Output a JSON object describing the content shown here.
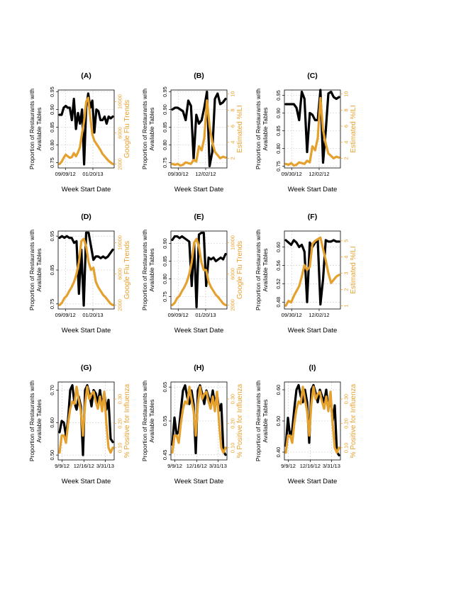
{
  "colors": {
    "black_series": "#000000",
    "orange_series": "#E5A12E",
    "grid": "#c8c8c8",
    "axis": "#000000"
  },
  "chart_data": [
    {
      "panel": "(A)",
      "type": "line",
      "xlabel": "Week Start Date",
      "ylabel_left": "Proportion of Restaurants with Available Tables",
      "ylabel_right": "Google Flu Trends",
      "x_ticks": [
        "09/09/12",
        "01/20/13"
      ],
      "ylim_left": [
        0.735,
        0.955
      ],
      "ylim_right": [
        1500,
        11500
      ],
      "y_ticks_left": [
        0.75,
        0.8,
        0.85,
        0.9,
        0.95
      ],
      "y_ticks_right": [
        2000,
        6000,
        10000
      ],
      "series_left": [
        0.885,
        0.885,
        0.905,
        0.91,
        0.905,
        0.905,
        0.87,
        0.93,
        0.845,
        0.89,
        0.86,
        0.9,
        0.745,
        0.905,
        0.945,
        0.905,
        0.925,
        0.835,
        0.9,
        0.895,
        0.87,
        0.87,
        0.88,
        0.86,
        0.88,
        0.875,
        0.88
      ],
      "series_right": [
        2000,
        2300,
        2800,
        3200,
        3000,
        2800,
        2900,
        3400,
        3000,
        3500,
        4200,
        6000,
        7500,
        10000,
        10500,
        8000,
        5800,
        5000,
        4600,
        4200,
        3800,
        3300,
        3000,
        2700,
        2400,
        2200,
        2000
      ]
    },
    {
      "panel": "(B)",
      "type": "line",
      "xlabel": "Week Start Date",
      "ylabel_left": "Proportion of Restaurants with Available Tables",
      "ylabel_right": "Estimated %ILI",
      "x_ticks": [
        "09/30/12",
        "12/02/12"
      ],
      "ylim_left": [
        0.735,
        0.955
      ],
      "ylim_right": [
        0.8,
        10.5
      ],
      "y_ticks_left": [
        0.75,
        0.8,
        0.85,
        0.9,
        0.95
      ],
      "y_ticks_right": [
        2,
        4,
        6,
        8,
        10
      ],
      "series_left": [
        0.9,
        0.905,
        0.905,
        0.9,
        0.895,
        0.87,
        0.925,
        0.91,
        0.76,
        0.885,
        0.86,
        0.87,
        0.905,
        0.95,
        0.74,
        0.78,
        0.93,
        0.945,
        0.915,
        0.92,
        0.93
      ],
      "series_right": [
        1.3,
        1.2,
        1.3,
        1.1,
        1.2,
        1.5,
        1.4,
        1.3,
        1.8,
        1.6,
        3.5,
        3.0,
        4.5,
        9.2,
        6.0,
        4.0,
        2.8,
        2.4,
        2.0,
        2.2,
        2.1
      ]
    },
    {
      "panel": "(C)",
      "type": "line",
      "xlabel": "Week Start Date",
      "ylabel_left": "Proportion of Restaurants with Available Tables",
      "ylabel_right": "Estimated %ILI",
      "x_ticks": [
        "09/30/12",
        "12/02/12"
      ],
      "ylim_left": [
        0.745,
        0.965
      ],
      "ylim_right": [
        0.8,
        10.5
      ],
      "y_ticks_left": [
        0.75,
        0.8,
        0.85,
        0.9,
        0.95
      ],
      "y_ticks_right": [
        2,
        4,
        6,
        8,
        10
      ],
      "series_left": [
        0.925,
        0.925,
        0.925,
        0.925,
        0.915,
        0.88,
        0.96,
        0.94,
        0.79,
        0.9,
        0.895,
        0.88,
        0.88,
        0.965,
        0.76,
        0.85,
        0.955,
        0.96,
        0.945,
        0.94,
        0.945
      ],
      "series_right": [
        1.3,
        1.2,
        1.4,
        1.1,
        1.2,
        1.5,
        1.4,
        1.3,
        1.7,
        1.5,
        3.5,
        3.0,
        4.5,
        9.5,
        5.5,
        3.8,
        2.6,
        2.3,
        2.0,
        2.2,
        2.1
      ]
    },
    {
      "panel": "(D)",
      "type": "line",
      "xlabel": "Week Start Date",
      "ylabel_left": "Proportion of Restaurants with Available Tables",
      "ylabel_right": "Google Flu Trends",
      "x_ticks": [
        "09/09/12",
        "01/20/13"
      ],
      "ylim_left": [
        0.735,
        0.965
      ],
      "ylim_right": [
        1500,
        11500
      ],
      "y_ticks_left": [
        0.75,
        0.85,
        0.95
      ],
      "y_ticks_right": [
        2000,
        6000,
        10000
      ],
      "series_left": [
        0.945,
        0.95,
        0.945,
        0.95,
        0.945,
        0.945,
        0.93,
        0.935,
        0.78,
        0.91,
        0.745,
        0.96,
        0.96,
        0.92,
        0.88,
        0.89,
        0.89,
        0.885,
        0.89,
        0.885,
        0.89,
        0.9,
        0.91
      ],
      "series_right": [
        2000,
        2300,
        2900,
        3200,
        3800,
        4300,
        5000,
        6000,
        7500,
        10200,
        10500,
        9500,
        7500,
        6500,
        6800,
        5000,
        4300,
        3800,
        3300,
        3000,
        2600,
        2200,
        2000
      ]
    },
    {
      "panel": "(E)",
      "type": "line",
      "xlabel": "Week Start Date",
      "ylabel_left": "Proportion of Restaurants with Available Tables",
      "ylabel_right": "Google Flu Trends",
      "x_ticks": [
        "09/09/12",
        "01/20/13"
      ],
      "ylim_left": [
        0.715,
        0.935
      ],
      "ylim_right": [
        1500,
        11500
      ],
      "y_ticks_left": [
        0.75,
        0.8,
        0.85,
        0.9
      ],
      "y_ticks_right": [
        2000,
        6000,
        10000
      ],
      "series_left": [
        0.91,
        0.92,
        0.92,
        0.915,
        0.92,
        0.915,
        0.91,
        0.905,
        0.78,
        0.9,
        0.72,
        0.925,
        0.93,
        0.93,
        0.78,
        0.86,
        0.855,
        0.86,
        0.85,
        0.855,
        0.86,
        0.855,
        0.87
      ],
      "series_right": [
        2000,
        2300,
        2900,
        3200,
        3800,
        4300,
        5000,
        6000,
        7500,
        10000,
        10500,
        9500,
        7500,
        6500,
        6500,
        5000,
        4300,
        3800,
        3300,
        3000,
        2600,
        2200,
        2000
      ]
    },
    {
      "panel": "(F)",
      "type": "line",
      "xlabel": "Week Start Date",
      "ylabel_left": "Proportion of Restaurants with Available Tables",
      "ylabel_right": "Estimated %ILI",
      "x_ticks": [
        "09/30/12",
        "12/02/12"
      ],
      "ylim_left": [
        0.465,
        0.635
      ],
      "ylim_right": [
        0.8,
        5.6
      ],
      "y_ticks_left": [
        0.48,
        0.52,
        0.56,
        0.6
      ],
      "y_ticks_right": [
        1,
        2,
        3,
        4,
        5
      ],
      "series_left": [
        0.615,
        0.61,
        0.605,
        0.615,
        0.61,
        0.6,
        0.605,
        0.59,
        0.48,
        0.61,
        0.6,
        0.61,
        0.615,
        0.475,
        0.53,
        0.615,
        0.612,
        0.612,
        0.615,
        0.612,
        0.612
      ],
      "series_right": [
        1.0,
        1.3,
        1.2,
        1.6,
        1.9,
        2.2,
        2.8,
        3.5,
        3.2,
        3.4,
        4.8,
        5.0,
        5.1,
        5.2,
        4.5,
        3.8,
        3.0,
        2.4,
        2.6,
        2.8,
        2.9
      ]
    },
    {
      "panel": "(G)",
      "type": "line",
      "xlabel": "Week Start Date",
      "ylabel_left": "Proportion of Restaurants with Available Tables",
      "ylabel_right": "% Positive for Influenza",
      "x_ticks": [
        "9/9/12",
        "12/16/12",
        "3/31/13"
      ],
      "ylim_left": [
        0.485,
        0.725
      ],
      "ylim_right": [
        0.05,
        0.37
      ],
      "y_ticks_left": [
        0.5,
        0.6,
        0.7
      ],
      "y_ticks_right": [
        0.1,
        0.2,
        0.3
      ],
      "series_left": [
        0.57,
        0.605,
        0.6,
        0.56,
        0.61,
        0.7,
        0.715,
        0.66,
        0.64,
        0.68,
        0.65,
        0.5,
        0.7,
        0.715,
        0.69,
        0.65,
        0.7,
        0.69,
        0.66,
        0.7,
        0.65,
        0.69,
        0.64,
        0.67,
        0.55,
        0.54
      ],
      "series_right": [
        0.08,
        0.15,
        0.15,
        0.12,
        0.2,
        0.26,
        0.29,
        0.28,
        0.35,
        0.3,
        0.25,
        0.15,
        0.28,
        0.35,
        0.3,
        0.32,
        0.33,
        0.29,
        0.26,
        0.31,
        0.25,
        0.33,
        0.2,
        0.1,
        0.08,
        0.1
      ]
    },
    {
      "panel": "(H)",
      "type": "line",
      "xlabel": "Week Start Date",
      "ylabel_left": "Proportion of Restaurants with Available Tables",
      "ylabel_right": "% Positive for Influenza",
      "x_ticks": [
        "9/9/12",
        "12/16/12",
        "3/31/13"
      ],
      "ylim_left": [
        0.435,
        0.665
      ],
      "ylim_right": [
        0.05,
        0.37
      ],
      "y_ticks_left": [
        0.45,
        0.55,
        0.65
      ],
      "y_ticks_right": [
        0.1,
        0.2,
        0.3
      ],
      "series_left": [
        0.48,
        0.56,
        0.51,
        0.52,
        0.58,
        0.64,
        0.655,
        0.62,
        0.6,
        0.64,
        0.6,
        0.455,
        0.64,
        0.655,
        0.63,
        0.6,
        0.64,
        0.62,
        0.6,
        0.64,
        0.6,
        0.63,
        0.58,
        0.6,
        0.46,
        0.45
      ],
      "series_right": [
        0.08,
        0.15,
        0.15,
        0.12,
        0.2,
        0.26,
        0.29,
        0.28,
        0.35,
        0.3,
        0.25,
        0.15,
        0.28,
        0.35,
        0.3,
        0.32,
        0.33,
        0.29,
        0.26,
        0.31,
        0.25,
        0.33,
        0.2,
        0.1,
        0.08,
        0.1
      ]
    },
    {
      "panel": "(I)",
      "type": "line",
      "xlabel": "Week Start Date",
      "ylabel_left": "Proportion of Restaurants with Available Tables",
      "ylabel_right": "% Positive for Influenza",
      "x_ticks": [
        "9/9/12",
        "12/16/12",
        "3/31/13"
      ],
      "ylim_left": [
        0.375,
        0.625
      ],
      "ylim_right": [
        0.05,
        0.37
      ],
      "y_ticks_left": [
        0.4,
        0.5,
        0.6
      ],
      "y_ticks_right": [
        0.1,
        0.2,
        0.3
      ],
      "series_left": [
        0.42,
        0.51,
        0.45,
        0.47,
        0.54,
        0.6,
        0.615,
        0.58,
        0.56,
        0.6,
        0.56,
        0.43,
        0.6,
        0.615,
        0.59,
        0.56,
        0.6,
        0.58,
        0.56,
        0.6,
        0.54,
        0.58,
        0.5,
        0.55,
        0.4,
        0.39
      ],
      "series_right": [
        0.08,
        0.15,
        0.15,
        0.12,
        0.2,
        0.26,
        0.29,
        0.28,
        0.35,
        0.3,
        0.25,
        0.15,
        0.28,
        0.35,
        0.3,
        0.32,
        0.33,
        0.29,
        0.26,
        0.31,
        0.25,
        0.33,
        0.2,
        0.1,
        0.08,
        0.1
      ]
    }
  ]
}
